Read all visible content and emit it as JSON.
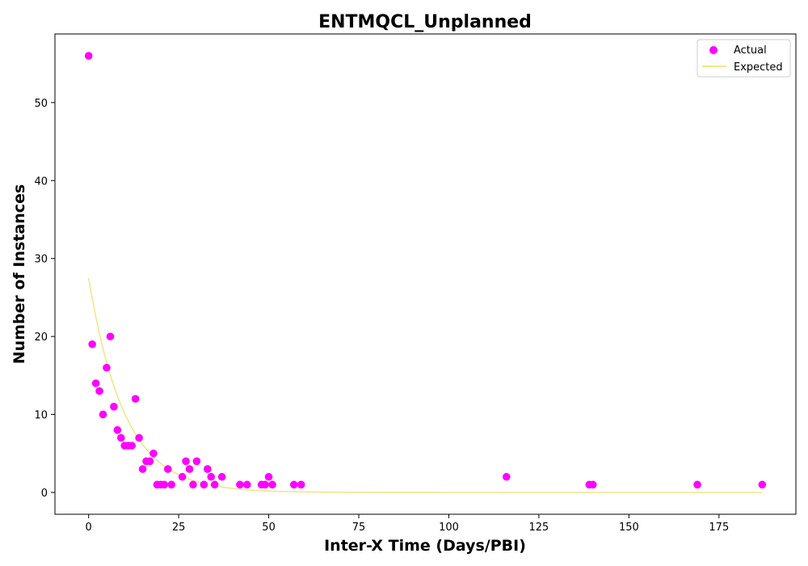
{
  "chart_data": {
    "type": "scatter",
    "title": "ENTMQCL_Unplanned",
    "xlabel": "Inter-X Time (Days/PBI)",
    "ylabel": "Number of Instances",
    "xlim": [
      -9.35,
      196.35
    ],
    "ylim": [
      -2.8,
      58.8
    ],
    "xticks": [
      0,
      25,
      50,
      75,
      100,
      125,
      150,
      175
    ],
    "yticks": [
      0,
      10,
      20,
      30,
      40,
      50
    ],
    "grid": false,
    "legend": {
      "position": "top-right",
      "entries": [
        "Actual",
        "Expected"
      ]
    },
    "colors": {
      "actual": "#ff00ff",
      "expected": "#f0e68c"
    },
    "series": [
      {
        "name": "Actual",
        "kind": "scatter",
        "points": [
          [
            0,
            56
          ],
          [
            1,
            19
          ],
          [
            2,
            14
          ],
          [
            3,
            13
          ],
          [
            4,
            10
          ],
          [
            5,
            16
          ],
          [
            6,
            20
          ],
          [
            7,
            11
          ],
          [
            8,
            8
          ],
          [
            9,
            7
          ],
          [
            10,
            6
          ],
          [
            11,
            6
          ],
          [
            12,
            6
          ],
          [
            13,
            12
          ],
          [
            14,
            7
          ],
          [
            15,
            3
          ],
          [
            16,
            4
          ],
          [
            17,
            4
          ],
          [
            18,
            5
          ],
          [
            19,
            1
          ],
          [
            20,
            1
          ],
          [
            21,
            1
          ],
          [
            22,
            3
          ],
          [
            23,
            1
          ],
          [
            26,
            2
          ],
          [
            27,
            4
          ],
          [
            28,
            3
          ],
          [
            29,
            1
          ],
          [
            30,
            4
          ],
          [
            32,
            1
          ],
          [
            33,
            3
          ],
          [
            34,
            2
          ],
          [
            35,
            1
          ],
          [
            37,
            2
          ],
          [
            42,
            1
          ],
          [
            44,
            1
          ],
          [
            48,
            1
          ],
          [
            49,
            1
          ],
          [
            50,
            2
          ],
          [
            51,
            1
          ],
          [
            57,
            1
          ],
          [
            59,
            1
          ],
          [
            116,
            2
          ],
          [
            139,
            1
          ],
          [
            140,
            1
          ],
          [
            169,
            1
          ],
          [
            187,
            1
          ]
        ]
      },
      {
        "name": "Expected",
        "kind": "line",
        "model": "exponential",
        "amplitude": 27.5,
        "rate": 0.1,
        "x_range": [
          0,
          187
        ]
      }
    ]
  }
}
